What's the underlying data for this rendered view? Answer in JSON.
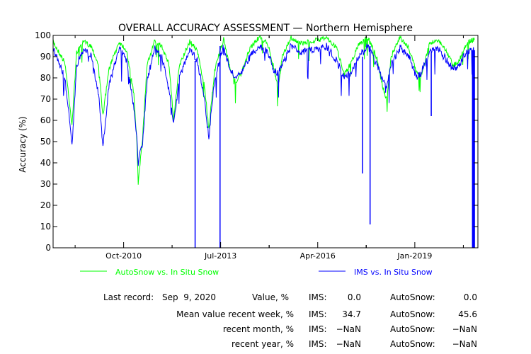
{
  "chart_data": {
    "type": "line",
    "title": "OVERALL ACCURACY ASSESSMENT — Northern Hemisphere",
    "ylabel": "Accuracy (%)",
    "xlabel": "",
    "ylim": [
      0,
      100
    ],
    "yticks": [
      0,
      10,
      20,
      30,
      40,
      50,
      60,
      70,
      80,
      90,
      100
    ],
    "xrange": [
      "2008-10-01",
      "2020-10-15"
    ],
    "xticks": [
      {
        "date": "2010-10-01",
        "label": "Oct-2010"
      },
      {
        "date": "2013-07-01",
        "label": "Jul-2013"
      },
      {
        "date": "2016-04-01",
        "label": "Apr-2016"
      },
      {
        "date": "2019-01-01",
        "label": "Jan-2019"
      }
    ],
    "grid": false,
    "legend_position": "bottom",
    "series": [
      {
        "name": "AutoSnow vs. In Situ Snow",
        "color": "#00ff00",
        "points": [
          [
            "2008-10-01",
            97
          ],
          [
            "2009-02-01",
            87
          ],
          [
            "2009-04-15",
            58
          ],
          [
            "2009-06-01",
            92
          ],
          [
            "2009-08-15",
            97
          ],
          [
            "2009-11-01",
            95
          ],
          [
            "2010-01-15",
            86
          ],
          [
            "2010-03-01",
            62
          ],
          [
            "2010-05-01",
            84
          ],
          [
            "2010-08-15",
            97
          ],
          [
            "2010-11-01",
            93
          ],
          [
            "2011-01-15",
            72
          ],
          [
            "2011-02-15",
            50
          ],
          [
            "2011-03-01",
            30
          ],
          [
            "2011-04-15",
            52
          ],
          [
            "2011-06-01",
            86
          ],
          [
            "2011-08-15",
            97
          ],
          [
            "2011-11-01",
            95
          ],
          [
            "2012-01-15",
            86
          ],
          [
            "2012-03-01",
            60
          ],
          [
            "2012-05-01",
            86
          ],
          [
            "2012-08-15",
            97
          ],
          [
            "2012-11-01",
            93
          ],
          [
            "2013-01-15",
            76
          ],
          [
            "2013-03-01",
            56
          ],
          [
            "2013-05-01",
            84
          ],
          [
            "2013-08-01",
            98
          ],
          [
            "2013-10-01",
            86
          ],
          [
            "2013-12-01",
            78
          ],
          [
            "2014-02-01",
            82
          ],
          [
            "2014-05-01",
            94
          ],
          [
            "2014-08-01",
            99
          ],
          [
            "2014-11-01",
            96
          ],
          [
            "2015-01-01",
            85
          ],
          [
            "2015-02-15",
            75
          ],
          [
            "2015-04-01",
            90
          ],
          [
            "2015-07-01",
            99
          ],
          [
            "2015-10-01",
            96
          ],
          [
            "2016-04-15",
            98
          ],
          [
            "2016-07-01",
            99
          ],
          [
            "2016-10-15",
            94
          ],
          [
            "2017-01-01",
            82
          ],
          [
            "2017-03-01",
            86
          ],
          [
            "2017-06-01",
            96
          ],
          [
            "2017-09-01",
            99
          ],
          [
            "2017-12-01",
            90
          ],
          [
            "2018-02-01",
            76
          ],
          [
            "2018-03-15",
            70
          ],
          [
            "2018-05-01",
            90
          ],
          [
            "2018-08-01",
            99
          ],
          [
            "2018-11-01",
            94
          ],
          [
            "2019-01-15",
            83
          ],
          [
            "2019-03-01",
            80
          ],
          [
            "2019-06-01",
            96
          ],
          [
            "2019-09-01",
            98
          ],
          [
            "2019-12-01",
            92
          ],
          [
            "2020-02-01",
            86
          ],
          [
            "2020-04-01",
            88
          ],
          [
            "2020-07-01",
            97
          ],
          [
            "2020-09-09",
            98
          ]
        ]
      },
      {
        "name": "IMS vs. In Situ Snow",
        "color": "#0000ff",
        "points": [
          [
            "2008-10-01",
            94
          ],
          [
            "2009-02-01",
            80
          ],
          [
            "2009-04-15",
            48
          ],
          [
            "2009-06-01",
            86
          ],
          [
            "2009-08-15",
            94
          ],
          [
            "2009-11-01",
            90
          ],
          [
            "2010-01-15",
            72
          ],
          [
            "2010-03-01",
            48
          ],
          [
            "2010-05-01",
            76
          ],
          [
            "2010-08-15",
            94
          ],
          [
            "2010-11-01",
            88
          ],
          [
            "2011-01-15",
            66
          ],
          [
            "2011-02-15",
            52
          ],
          [
            "2011-03-01",
            40
          ],
          [
            "2011-04-15",
            50
          ],
          [
            "2011-06-01",
            78
          ],
          [
            "2011-08-15",
            94
          ],
          [
            "2011-11-01",
            90
          ],
          [
            "2012-01-15",
            74
          ],
          [
            "2012-03-01",
            58
          ],
          [
            "2012-05-01",
            80
          ],
          [
            "2012-08-15",
            94
          ],
          [
            "2012-11-01",
            88
          ],
          [
            "2013-01-15",
            70
          ],
          [
            "2013-03-01",
            52
          ],
          [
            "2013-05-01",
            80
          ],
          [
            "2013-08-01",
            95
          ],
          [
            "2013-10-01",
            84
          ],
          [
            "2013-12-01",
            80
          ],
          [
            "2014-02-01",
            82
          ],
          [
            "2014-05-01",
            90
          ],
          [
            "2014-08-01",
            95
          ],
          [
            "2014-11-01",
            92
          ],
          [
            "2015-01-01",
            84
          ],
          [
            "2015-02-15",
            82
          ],
          [
            "2015-04-01",
            86
          ],
          [
            "2015-07-01",
            95
          ],
          [
            "2015-10-01",
            92
          ],
          [
            "2016-04-15",
            94
          ],
          [
            "2016-07-01",
            95
          ],
          [
            "2016-10-15",
            88
          ],
          [
            "2017-01-01",
            80
          ],
          [
            "2017-03-01",
            82
          ],
          [
            "2017-06-01",
            90
          ],
          [
            "2017-09-01",
            95
          ],
          [
            "2017-12-01",
            86
          ],
          [
            "2018-02-01",
            80
          ],
          [
            "2018-03-15",
            76
          ],
          [
            "2018-05-01",
            86
          ],
          [
            "2018-08-01",
            94
          ],
          [
            "2018-11-01",
            90
          ],
          [
            "2019-01-15",
            80
          ],
          [
            "2019-03-01",
            82
          ],
          [
            "2019-06-01",
            92
          ],
          [
            "2019-09-01",
            94
          ],
          [
            "2019-12-01",
            88
          ],
          [
            "2020-02-01",
            84
          ],
          [
            "2020-04-01",
            86
          ],
          [
            "2020-07-01",
            93
          ],
          [
            "2020-09-09",
            93
          ]
        ],
        "spikes": [
          {
            "date": "2012-10-10",
            "value": 0
          },
          {
            "date": "2013-06-25",
            "value": 0
          },
          {
            "date": "2017-09-25",
            "value": 11
          },
          {
            "date": "2017-07-10",
            "value": 35
          },
          {
            "date": "2019-06-20",
            "value": 62
          },
          {
            "date": "2020-08-20",
            "value": 0
          },
          {
            "date": "2020-08-28",
            "value": 0
          },
          {
            "date": "2020-09-05",
            "value": 0
          },
          {
            "date": "2020-09-09",
            "value": 0
          }
        ]
      }
    ]
  },
  "stats": {
    "last_record_label": "Last record:",
    "last_record_date": "Sep  9, 2020",
    "value_label": "Value, %",
    "rows": [
      {
        "label": "",
        "ims_label": "IMS:",
        "ims": "0.0",
        "auto_label": "AutoSnow:",
        "auto": "0.0"
      },
      {
        "label": "Mean value recent week, %",
        "ims_label": "IMS:",
        "ims": "34.7",
        "auto_label": "AutoSnow:",
        "auto": "45.6"
      },
      {
        "label": "recent month, %",
        "ims_label": "IMS:",
        "ims": "−NaN",
        "auto_label": "AutoSnow:",
        "auto": "−NaN"
      },
      {
        "label": "recent year, %",
        "ims_label": "IMS:",
        "ims": "−NaN",
        "auto_label": "AutoSnow:",
        "auto": "−NaN"
      }
    ]
  }
}
